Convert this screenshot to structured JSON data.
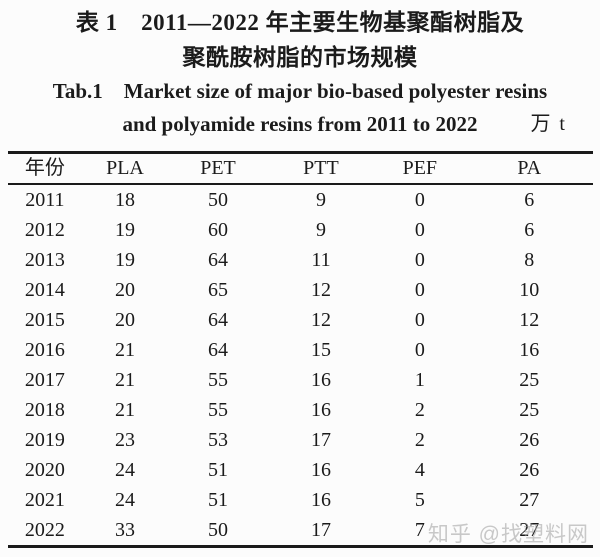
{
  "caption": {
    "zh_line1": "表 1　2011—2022 年主要生物基聚酯树脂及",
    "zh_line2": "聚酰胺树脂的市场规模",
    "en_line1": "Tab.1　Market size of major bio-based polyester resins",
    "en_line2": "and polyamide resins from 2011 to 2022",
    "unit": "万 t"
  },
  "table": {
    "headers": [
      "年份",
      "PLA",
      "PET",
      "PTT",
      "PEF",
      "PA"
    ],
    "rows": [
      [
        "2011",
        "18",
        "50",
        "9",
        "0",
        "6"
      ],
      [
        "2012",
        "19",
        "60",
        "9",
        "0",
        "6"
      ],
      [
        "2013",
        "19",
        "64",
        "11",
        "0",
        "8"
      ],
      [
        "2014",
        "20",
        "65",
        "12",
        "0",
        "10"
      ],
      [
        "2015",
        "20",
        "64",
        "12",
        "0",
        "12"
      ],
      [
        "2016",
        "21",
        "64",
        "15",
        "0",
        "16"
      ],
      [
        "2017",
        "21",
        "55",
        "16",
        "1",
        "25"
      ],
      [
        "2018",
        "21",
        "55",
        "16",
        "2",
        "25"
      ],
      [
        "2019",
        "23",
        "53",
        "17",
        "2",
        "26"
      ],
      [
        "2020",
        "24",
        "51",
        "16",
        "4",
        "26"
      ],
      [
        "2021",
        "24",
        "51",
        "16",
        "5",
        "27"
      ],
      [
        "2022",
        "33",
        "50",
        "17",
        "7",
        "27"
      ]
    ]
  },
  "watermark": {
    "text": "知乎 @找塑料网"
  },
  "colors": {
    "text": "#1b1b1b",
    "rule": "#1a1a1a",
    "watermark_gray": "#9e9e9e",
    "background": "#fcfcfc"
  }
}
